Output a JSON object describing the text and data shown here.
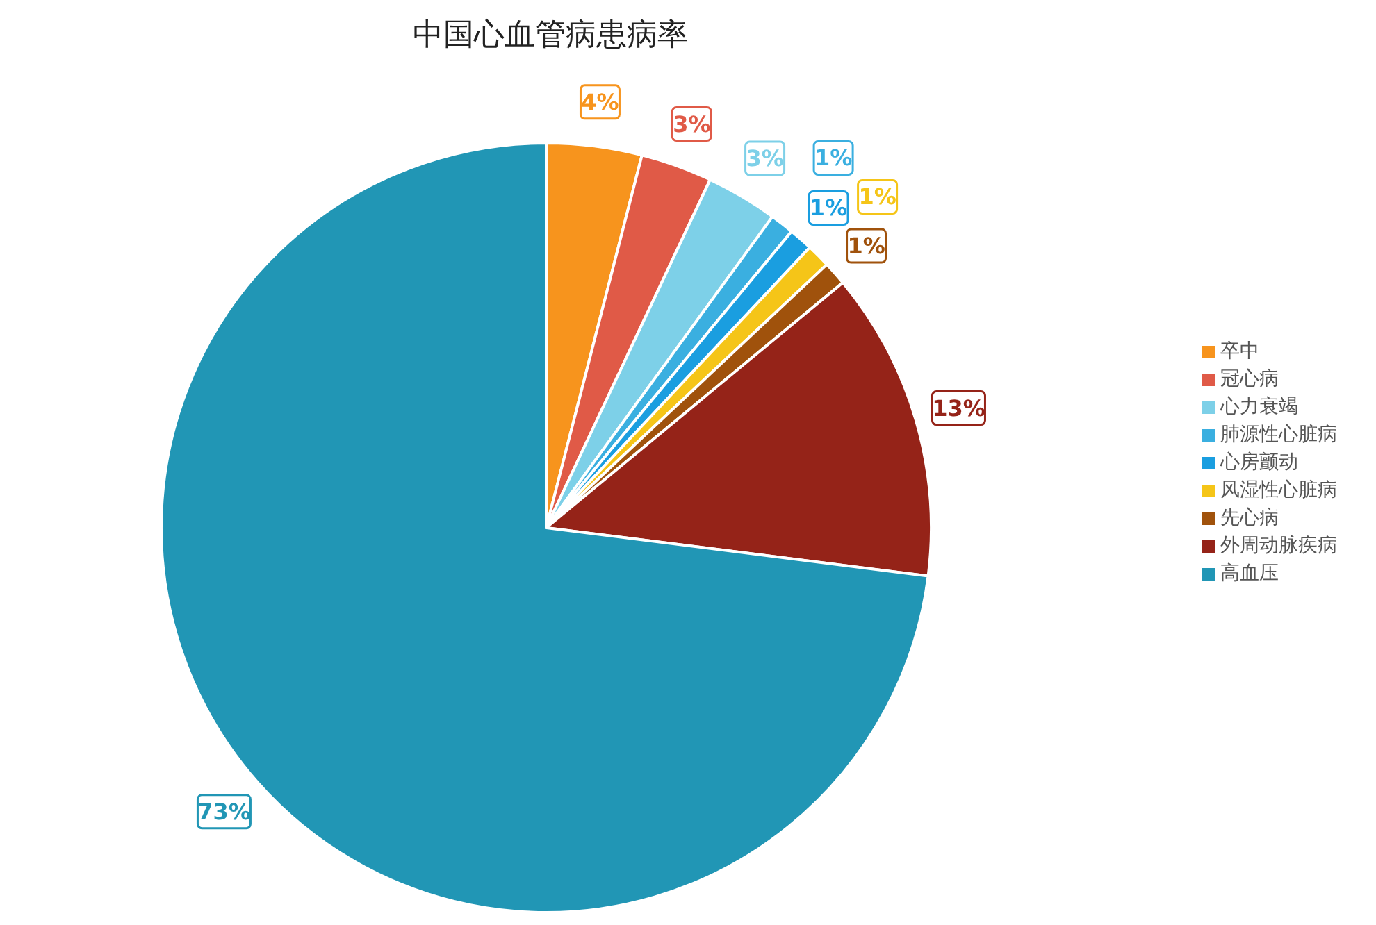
{
  "chart_data": {
    "type": "pie",
    "title": "中国心血管病患病率",
    "categories": [
      "卒中",
      "冠心病",
      "心力衰竭",
      "肺源性心脏病",
      "心房颤动",
      "风湿性心脏病",
      "先心病",
      "外周动脉疾病",
      "高血压"
    ],
    "values": [
      4,
      3,
      3,
      1,
      1,
      1,
      1,
      13,
      73
    ],
    "colors": [
      "#f7941d",
      "#e05a47",
      "#7dd0e8",
      "#3aafe0",
      "#1a9ee0",
      "#f5c518",
      "#a0520c",
      "#952318",
      "#2196b5"
    ],
    "value_labels": [
      "4%",
      "3%",
      "3%",
      "1%",
      "1%",
      "1%",
      "1%",
      "13%",
      "73%"
    ],
    "legend": "right"
  }
}
